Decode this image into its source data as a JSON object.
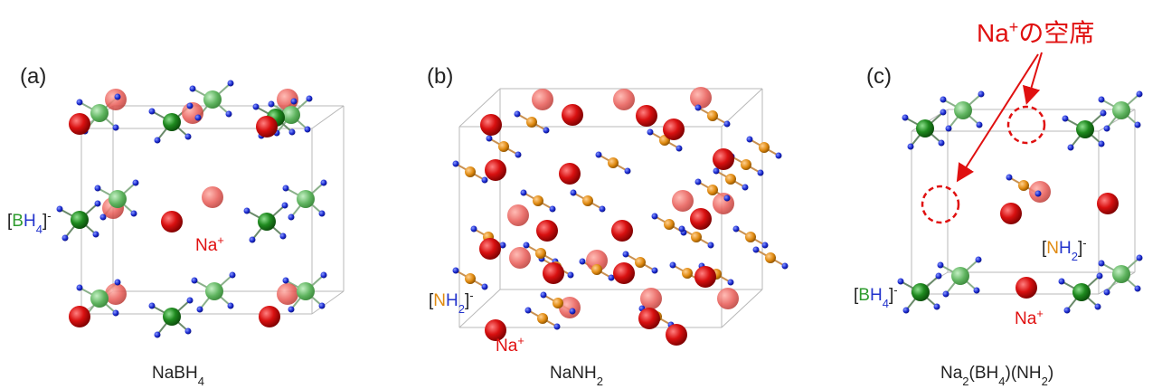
{
  "panels": [
    {
      "label": "(a)",
      "caption": [
        "NaBH",
        "4"
      ],
      "bh4": [
        "[",
        "B",
        "H",
        "4",
        "]",
        "-"
      ],
      "na": [
        "Na",
        "+"
      ]
    },
    {
      "label": "(b)",
      "caption": [
        "NaNH",
        "2"
      ],
      "nh2": [
        "[",
        "N",
        "H",
        "2",
        "]",
        "-"
      ],
      "na": [
        "Na",
        "+"
      ]
    },
    {
      "label": "(c)",
      "caption": [
        "Na",
        "2",
        "(BH",
        "4",
        ")(NH",
        "2",
        ")"
      ],
      "nh2": [
        "[",
        "N",
        "H",
        "2",
        "]",
        "-"
      ],
      "bh4": [
        "[",
        "B",
        "H",
        "4",
        "]",
        "-"
      ],
      "na": [
        "Na",
        "+"
      ],
      "vacancy": [
        "Na",
        "+",
        "の空席"
      ]
    }
  ]
}
